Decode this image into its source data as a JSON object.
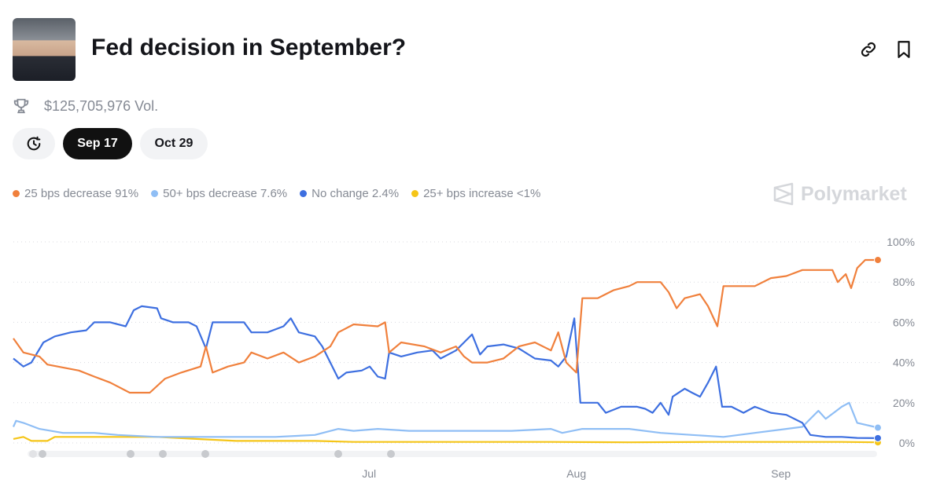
{
  "header": {
    "title": "Fed decision in September?",
    "volume": "$125,705,976 Vol."
  },
  "tabs": [
    {
      "label": "Sep 17",
      "active": true
    },
    {
      "label": "Oct 29",
      "active": false
    }
  ],
  "watermark": "Polymarket",
  "legend": [
    {
      "label": "25 bps decrease 91%",
      "color": "#f0803c"
    },
    {
      "label": "50+ bps decrease 7.6%",
      "color": "#8fbef5"
    },
    {
      "label": "No change 2.4%",
      "color": "#3d6fe0"
    },
    {
      "label": "25+ bps increase <1%",
      "color": "#f5c518"
    }
  ],
  "chart_data": {
    "type": "line",
    "xlabel": "",
    "ylabel": "",
    "x_unit": "days since start (~May 9)",
    "xlim": [
      0,
      129.3
    ],
    "ylim": [
      0,
      100
    ],
    "grid": true,
    "legend_position": "top-left",
    "y_ticks": [
      {
        "v": 0,
        "label": "0%"
      },
      {
        "v": 20,
        "label": "20%"
      },
      {
        "v": 40,
        "label": "40%"
      },
      {
        "v": 60,
        "label": "60%"
      },
      {
        "v": 80,
        "label": "80%"
      },
      {
        "v": 100,
        "label": "100%"
      }
    ],
    "x_ticks": [
      {
        "v": 53.2,
        "label": "Jul"
      },
      {
        "v": 84.2,
        "label": "Aug"
      },
      {
        "v": 114.8,
        "label": "Sep"
      }
    ],
    "series": [
      {
        "name": "25 bps decrease",
        "color": "#f0803c",
        "points": [
          [
            0,
            52
          ],
          [
            1.5,
            45
          ],
          [
            3.9,
            43
          ],
          [
            5.1,
            39
          ],
          [
            9.8,
            36
          ],
          [
            12.1,
            33
          ],
          [
            14.5,
            30
          ],
          [
            17.4,
            25
          ],
          [
            20.4,
            25
          ],
          [
            22.7,
            32
          ],
          [
            25.1,
            35
          ],
          [
            28,
            38
          ],
          [
            28.8,
            48
          ],
          [
            29.8,
            35
          ],
          [
            32.1,
            38
          ],
          [
            34.5,
            40
          ],
          [
            35.6,
            45
          ],
          [
            38,
            42
          ],
          [
            40.4,
            45
          ],
          [
            42.7,
            40
          ],
          [
            45.1,
            43
          ],
          [
            47.4,
            48
          ],
          [
            48.6,
            55
          ],
          [
            50.9,
            59
          ],
          [
            54.5,
            58
          ],
          [
            55.6,
            60
          ],
          [
            56.2,
            45
          ],
          [
            58,
            50
          ],
          [
            61.5,
            48
          ],
          [
            63.9,
            45
          ],
          [
            66.2,
            48
          ],
          [
            67.4,
            43
          ],
          [
            68.6,
            40
          ],
          [
            70.9,
            40
          ],
          [
            73.3,
            42
          ],
          [
            75.6,
            48
          ],
          [
            78,
            50
          ],
          [
            80.4,
            46
          ],
          [
            81.5,
            55
          ],
          [
            82.7,
            40
          ],
          [
            84.2,
            35
          ],
          [
            85.1,
            72
          ],
          [
            87.4,
            72
          ],
          [
            89.8,
            76
          ],
          [
            92.1,
            78
          ],
          [
            93.3,
            80
          ],
          [
            96.8,
            80
          ],
          [
            98,
            75
          ],
          [
            99.2,
            67
          ],
          [
            100.4,
            72
          ],
          [
            102.7,
            74
          ],
          [
            103.9,
            68
          ],
          [
            105.3,
            58
          ],
          [
            106.2,
            78
          ],
          [
            108.6,
            78
          ],
          [
            110.9,
            78
          ],
          [
            113.3,
            82
          ],
          [
            115.6,
            83
          ],
          [
            118,
            86
          ],
          [
            120.4,
            86
          ],
          [
            122.5,
            86
          ],
          [
            123.3,
            80
          ],
          [
            124.5,
            84
          ],
          [
            125.3,
            77
          ],
          [
            126.2,
            87
          ],
          [
            127.4,
            91
          ],
          [
            129.3,
            91
          ]
        ]
      },
      {
        "name": "50+ bps decrease",
        "color": "#8fbef5",
        "points": [
          [
            0,
            8
          ],
          [
            0.4,
            11
          ],
          [
            1.5,
            10
          ],
          [
            3.9,
            7
          ],
          [
            7.4,
            5
          ],
          [
            12.1,
            5
          ],
          [
            15.6,
            4
          ],
          [
            21.5,
            3
          ],
          [
            27.4,
            3
          ],
          [
            33.3,
            3
          ],
          [
            39.2,
            3
          ],
          [
            45.1,
            4
          ],
          [
            48.6,
            7
          ],
          [
            50.9,
            6
          ],
          [
            54.5,
            7
          ],
          [
            59.2,
            6
          ],
          [
            63.9,
            6
          ],
          [
            68.6,
            6
          ],
          [
            74.5,
            6
          ],
          [
            80.4,
            7
          ],
          [
            82.1,
            5
          ],
          [
            85.1,
            7
          ],
          [
            87.4,
            7
          ],
          [
            92.1,
            7
          ],
          [
            96.8,
            5
          ],
          [
            101.5,
            4
          ],
          [
            106.2,
            3
          ],
          [
            110.9,
            5
          ],
          [
            115.6,
            7
          ],
          [
            118,
            8
          ],
          [
            120.4,
            16
          ],
          [
            121.5,
            12
          ],
          [
            122.7,
            15
          ],
          [
            123.9,
            18
          ],
          [
            125,
            20
          ],
          [
            126.2,
            10
          ],
          [
            129.3,
            7.6
          ]
        ]
      },
      {
        "name": "No change",
        "color": "#3d6fe0",
        "points": [
          [
            0,
            42
          ],
          [
            1.5,
            38
          ],
          [
            2.7,
            40
          ],
          [
            4.5,
            50
          ],
          [
            6.2,
            53
          ],
          [
            8.6,
            55
          ],
          [
            10.9,
            56
          ],
          [
            12.1,
            60
          ],
          [
            14.5,
            60
          ],
          [
            16.8,
            58
          ],
          [
            18,
            66
          ],
          [
            19.2,
            68
          ],
          [
            21.5,
            67
          ],
          [
            22.1,
            62
          ],
          [
            23.9,
            60
          ],
          [
            26.2,
            60
          ],
          [
            27.4,
            58
          ],
          [
            28.8,
            47
          ],
          [
            29.8,
            60
          ],
          [
            32.1,
            60
          ],
          [
            34.5,
            60
          ],
          [
            35.6,
            55
          ],
          [
            38,
            55
          ],
          [
            40.4,
            58
          ],
          [
            41.5,
            62
          ],
          [
            42.7,
            55
          ],
          [
            45.1,
            53
          ],
          [
            46.2,
            48
          ],
          [
            47.4,
            40
          ],
          [
            48.6,
            32
          ],
          [
            49.8,
            35
          ],
          [
            52.1,
            36
          ],
          [
            53.3,
            38
          ],
          [
            54.5,
            33
          ],
          [
            55.6,
            32
          ],
          [
            56.2,
            45
          ],
          [
            58,
            43
          ],
          [
            60.4,
            45
          ],
          [
            62.7,
            46
          ],
          [
            63.9,
            42
          ],
          [
            66.2,
            46
          ],
          [
            67.4,
            50
          ],
          [
            68.6,
            54
          ],
          [
            69.8,
            44
          ],
          [
            70.9,
            48
          ],
          [
            73.3,
            49
          ],
          [
            75.6,
            47
          ],
          [
            78,
            42
          ],
          [
            80.4,
            41
          ],
          [
            81.5,
            38
          ],
          [
            82.7,
            43
          ],
          [
            83.9,
            62
          ],
          [
            84.8,
            20
          ],
          [
            87.4,
            20
          ],
          [
            88.6,
            15
          ],
          [
            90.9,
            18
          ],
          [
            93.3,
            18
          ],
          [
            94.5,
            17
          ],
          [
            95.6,
            15
          ],
          [
            96.8,
            20
          ],
          [
            98,
            14
          ],
          [
            98.6,
            23
          ],
          [
            100.4,
            27
          ],
          [
            101.5,
            25
          ],
          [
            102.7,
            23
          ],
          [
            103.9,
            30
          ],
          [
            105.1,
            38
          ],
          [
            106,
            18
          ],
          [
            107.4,
            18
          ],
          [
            109.2,
            15
          ],
          [
            110.9,
            18
          ],
          [
            113.3,
            15
          ],
          [
            115.6,
            14
          ],
          [
            118,
            10
          ],
          [
            119.2,
            4
          ],
          [
            121.5,
            3
          ],
          [
            123.9,
            3
          ],
          [
            126.2,
            2.5
          ],
          [
            129.3,
            2.4
          ]
        ]
      },
      {
        "name": "25+ bps increase",
        "color": "#f5c518",
        "points": [
          [
            0,
            2
          ],
          [
            1.5,
            3
          ],
          [
            2.7,
            1
          ],
          [
            5.1,
            1
          ],
          [
            6.2,
            3
          ],
          [
            9.8,
            3
          ],
          [
            15.6,
            3
          ],
          [
            21.5,
            3
          ],
          [
            27.4,
            2
          ],
          [
            33.3,
            1
          ],
          [
            45.1,
            1
          ],
          [
            50.9,
            0.5
          ],
          [
            56.8,
            0.5
          ],
          [
            68.6,
            0.5
          ],
          [
            80.4,
            0.5
          ],
          [
            92.1,
            0.3
          ],
          [
            103.9,
            0.5
          ],
          [
            115.6,
            0.5
          ],
          [
            123.9,
            0.5
          ],
          [
            129.3,
            0.3
          ]
        ]
      }
    ]
  }
}
